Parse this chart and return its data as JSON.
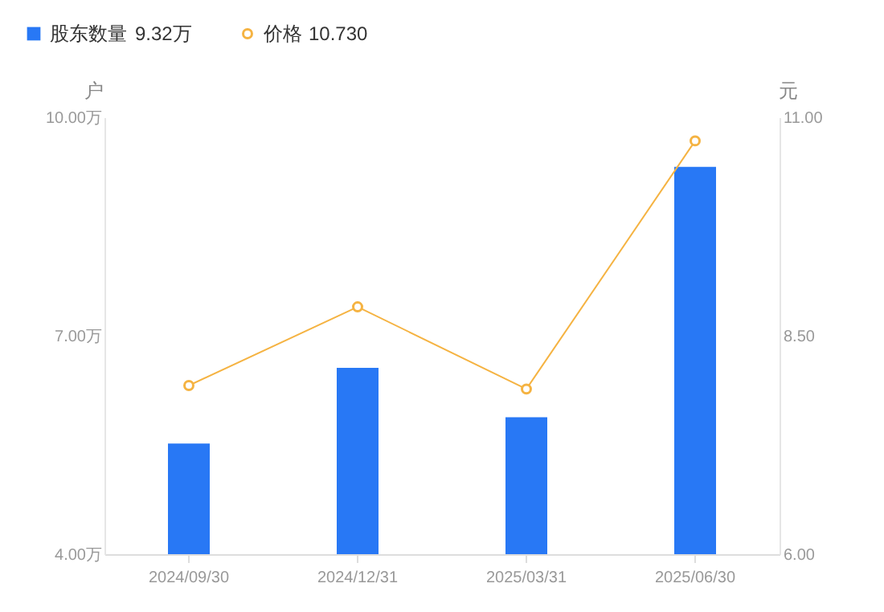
{
  "chart_data": {
    "type": "bar",
    "categories": [
      "2024/09/30",
      "2024/12/31",
      "2025/03/31",
      "2025/06/30"
    ],
    "series": [
      {
        "name": "股东数量",
        "color": "#2878f5",
        "values": [
          5.52,
          6.56,
          5.88,
          9.32
        ]
      },
      {
        "name": "价格",
        "type": "line",
        "axis": "y2",
        "color": "#f5b342",
        "values": [
          7.93,
          8.83,
          7.89,
          10.73
        ]
      }
    ],
    "annotations": [
      "9.32万",
      "10.730"
    ],
    "ylabel": "户",
    "y2label": "元",
    "ylim": [
      4,
      10
    ],
    "yticks": [
      {
        "value": 4,
        "label": "4.00万"
      },
      {
        "value": 7,
        "label": "7.00万"
      },
      {
        "value": 10,
        "label": "10.00万"
      }
    ],
    "y2lim": [
      6,
      11
    ],
    "y2ticks": [
      {
        "value": 6,
        "label": "6.00"
      },
      {
        "value": 8.5,
        "label": "8.50"
      },
      {
        "value": 11,
        "label": "11.00"
      }
    ],
    "legend": "top left",
    "marker": "circle",
    "line_style": "solid"
  }
}
